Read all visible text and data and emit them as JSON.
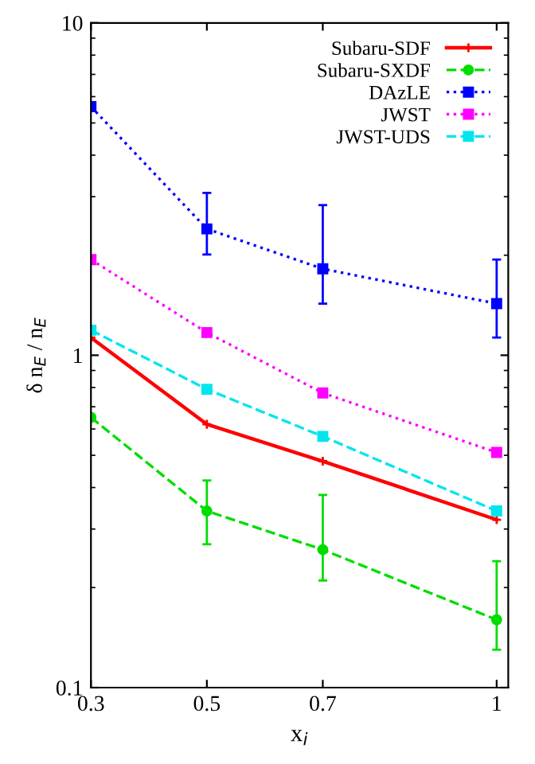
{
  "chart_data": {
    "type": "line",
    "xlabel": "x$_{i}$",
    "ylabel": "δ n$_{E}$ / n$_{E}$",
    "x": [
      0.3,
      0.5,
      0.7,
      1
    ],
    "series": [
      {
        "name": "Subaru-SDF",
        "color": "#ff0000",
        "values": [
          1.13,
          0.62,
          0.48,
          0.32
        ],
        "marker": "cross",
        "line_style": "solid"
      },
      {
        "name": "Subaru-SXDF",
        "color": "#00dd00",
        "values": [
          0.65,
          0.34,
          0.26,
          0.16
        ],
        "errors": [
          null,
          [
            0.27,
            0.42
          ],
          [
            0.21,
            0.38
          ],
          [
            0.13,
            0.24
          ]
        ],
        "marker": "circle",
        "line_style": "dashed"
      },
      {
        "name": "DAzLE",
        "color": "#0000ff",
        "values": [
          5.6,
          2.4,
          1.82,
          1.43
        ],
        "errors": [
          null,
          [
            2.01,
            3.08
          ],
          [
            1.43,
            2.83
          ],
          [
            1.13,
            1.94
          ]
        ],
        "marker": "square",
        "line_style": "dotted"
      },
      {
        "name": "JWST",
        "color": "#ff00ff",
        "values": [
          1.94,
          1.17,
          0.77,
          0.51
        ],
        "marker": "square",
        "line_style": "dotted"
      },
      {
        "name": "JWST-UDS",
        "color": "#00e5ee",
        "values": [
          1.19,
          0.79,
          0.57,
          0.34
        ],
        "marker": "square",
        "line_style": "dashed"
      }
    ],
    "log": "y",
    "ylim": [
      0.1,
      10
    ],
    "yticks": [
      0.1,
      1,
      10
    ],
    "xlim": [
      0.3,
      1.02
    ],
    "xticks": [
      0.3,
      0.5,
      0.7,
      1
    ],
    "legend": "top right",
    "grid": false
  }
}
